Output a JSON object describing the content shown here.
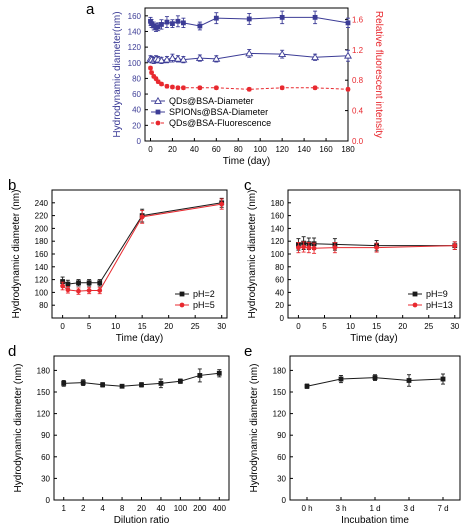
{
  "chart_data": [
    {
      "panel": "a",
      "type": "line",
      "xlabel": "Time (day)",
      "ylabel": "Hydrodynamic diameter(nm)",
      "y2label": "Relative fluorescent intensity",
      "xlim": [
        -5,
        180
      ],
      "ylim": [
        0,
        170
      ],
      "y2lim": [
        0,
        1.75
      ],
      "xticks": [
        "0",
        "20",
        "40",
        "60",
        "80",
        "100",
        "120",
        "140",
        "160",
        "180"
      ],
      "yticks": [
        "0",
        "20",
        "40",
        "60",
        "80",
        "100",
        "120",
        "140",
        "160"
      ],
      "y2ticks": [
        "0.0",
        "0.4",
        "0.8",
        "1.2",
        "1.6"
      ],
      "legend_position": "lower-left",
      "y2_color": "#e8292f",
      "series": [
        {
          "name": "QDs@BSA-Diameter",
          "axis": "left",
          "color": "#3c3c96",
          "marker": "open-triangle",
          "x": [
            0,
            1,
            3,
            5,
            7,
            10,
            15,
            20,
            25,
            30,
            45,
            60,
            90,
            120,
            150,
            180
          ],
          "y": [
            105,
            104,
            103,
            105,
            104,
            103,
            104,
            106,
            105,
            104,
            106,
            105,
            112,
            111,
            107,
            109
          ],
          "err": [
            4,
            4,
            4,
            4,
            4,
            4,
            4,
            5,
            4,
            4,
            4,
            4,
            5,
            5,
            4,
            7
          ]
        },
        {
          "name": "SPIONs@BSA-Diameter",
          "axis": "left",
          "color": "#3c3c96",
          "marker": "filled-square",
          "x": [
            0,
            1,
            3,
            5,
            7,
            10,
            15,
            20,
            25,
            30,
            45,
            60,
            90,
            120,
            150,
            180
          ],
          "y": [
            153,
            150,
            147,
            145,
            146,
            149,
            152,
            150,
            153,
            151,
            147,
            157,
            156,
            158,
            158,
            151
          ],
          "err": [
            5,
            5,
            5,
            5,
            5,
            6,
            7,
            5,
            7,
            6,
            5,
            7,
            7,
            8,
            8,
            6
          ]
        },
        {
          "name": "QDs@BSA-Fluorescence",
          "axis": "right",
          "color": "#e8292f",
          "marker": "filled-circle",
          "dash": true,
          "x": [
            0,
            1,
            3,
            5,
            7,
            10,
            15,
            20,
            25,
            30,
            45,
            60,
            90,
            120,
            150,
            180
          ],
          "y": [
            0.96,
            0.9,
            0.85,
            0.82,
            0.78,
            0.75,
            0.72,
            0.71,
            0.7,
            0.7,
            0.7,
            0.7,
            0.68,
            0.7,
            0.7,
            0.68
          ],
          "err": [
            0.02,
            0.02,
            0.02,
            0.02,
            0.02,
            0.02,
            0.02,
            0.02,
            0.02,
            0.02,
            0.02,
            0.02,
            0.02,
            0.02,
            0.02,
            0.02
          ]
        }
      ]
    },
    {
      "panel": "b",
      "type": "line",
      "xlabel": "Time (day)",
      "ylabel": "Hydrodynamic diameter (nm)",
      "xlim": [
        -2,
        31
      ],
      "ylim": [
        60,
        260
      ],
      "xticks": [
        "0",
        "5",
        "10",
        "15",
        "20",
        "25",
        "30"
      ],
      "yticks": [
        "80",
        "100",
        "120",
        "140",
        "160",
        "180",
        "200",
        "220",
        "240"
      ],
      "legend_position": "lower-right",
      "series": [
        {
          "name": "pH=2",
          "color": "#1a1a1a",
          "marker": "filled-square",
          "x": [
            0,
            1,
            3,
            5,
            7,
            15,
            30
          ],
          "y": [
            117,
            113,
            115,
            115,
            115,
            220,
            240
          ],
          "err": [
            7,
            6,
            5,
            5,
            5,
            10,
            7
          ]
        },
        {
          "name": "pH=5",
          "color": "#e8292f",
          "marker": "filled-circle",
          "x": [
            0,
            1,
            3,
            5,
            7,
            15,
            30
          ],
          "y": [
            110,
            104,
            102,
            103,
            103,
            218,
            238
          ],
          "err": [
            6,
            5,
            5,
            5,
            5,
            10,
            8
          ]
        }
      ]
    },
    {
      "panel": "c",
      "type": "line",
      "xlabel": "Time (day)",
      "ylabel": "Hydrodynamic diameter (nm)",
      "xlim": [
        -2,
        31
      ],
      "ylim": [
        0,
        200
      ],
      "xticks": [
        "0",
        "5",
        "10",
        "15",
        "20",
        "25",
        "30"
      ],
      "yticks": [
        "0",
        "20",
        "40",
        "60",
        "80",
        "100",
        "120",
        "140",
        "160",
        "180"
      ],
      "legend_position": "lower-right",
      "series": [
        {
          "name": "pH=9",
          "color": "#1a1a1a",
          "marker": "filled-square",
          "x": [
            0,
            1,
            2,
            3,
            7,
            15,
            30
          ],
          "y": [
            115,
            117,
            116,
            116,
            115,
            113,
            113
          ],
          "err": [
            9,
            10,
            9,
            9,
            9,
            8,
            6
          ]
        },
        {
          "name": "pH=13",
          "color": "#e8292f",
          "marker": "filled-circle",
          "x": [
            0,
            1,
            2,
            3,
            7,
            15,
            30
          ],
          "y": [
            110,
            111,
            110,
            109,
            110,
            110,
            113
          ],
          "err": [
            8,
            8,
            8,
            8,
            8,
            7,
            6
          ]
        }
      ]
    },
    {
      "panel": "d",
      "type": "line",
      "xlabel": "Dilution ratio",
      "ylabel": "Hydrodynamic diameter (nm)",
      "categories": [
        "1",
        "2",
        "4",
        "8",
        "20",
        "40",
        "100",
        "200",
        "400"
      ],
      "ylim": [
        0,
        200
      ],
      "yticks": [
        "0",
        "30",
        "60",
        "90",
        "120",
        "150",
        "180"
      ],
      "series": [
        {
          "color": "#1a1a1a",
          "marker": "filled-square",
          "values": [
            162,
            163,
            160,
            158,
            160,
            162,
            165,
            173,
            176
          ],
          "err": [
            4,
            4,
            3,
            2,
            3,
            6,
            3,
            9,
            5
          ]
        }
      ]
    },
    {
      "panel": "e",
      "type": "line",
      "xlabel": "Incubation time",
      "ylabel": "Hydrodynamic diameter (nm)",
      "categories": [
        "0 h",
        "3 h",
        "1 d",
        "3 d",
        "7 d"
      ],
      "ylim": [
        0,
        200
      ],
      "yticks": [
        "0",
        "30",
        "60",
        "90",
        "120",
        "150",
        "180"
      ],
      "series": [
        {
          "color": "#1a1a1a",
          "marker": "filled-square",
          "values": [
            158,
            168,
            170,
            166,
            168
          ],
          "err": [
            3,
            5,
            4,
            8,
            7
          ]
        }
      ]
    }
  ]
}
